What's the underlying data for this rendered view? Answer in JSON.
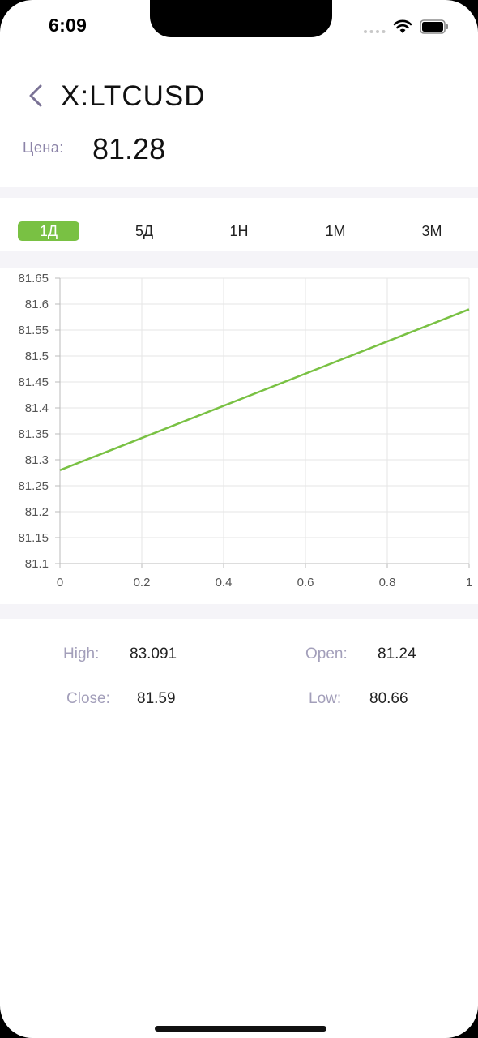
{
  "status_bar": {
    "time": "6:09"
  },
  "header": {
    "title": "X:LTCUSD"
  },
  "price": {
    "label": "Цена:",
    "value": "81.28"
  },
  "tabs": [
    {
      "label": "1Д",
      "active": true
    },
    {
      "label": "5Д",
      "active": false
    },
    {
      "label": "1Н",
      "active": false
    },
    {
      "label": "1М",
      "active": false
    },
    {
      "label": "3М",
      "active": false
    }
  ],
  "chart_data": {
    "type": "line",
    "x": [
      0,
      1
    ],
    "series": [
      {
        "values": [
          81.28,
          81.59
        ],
        "color": "#79c143"
      }
    ],
    "xlim": [
      0,
      1
    ],
    "ylim": [
      81.1,
      81.65
    ],
    "x_ticks": [
      "0",
      "0.2",
      "0.4",
      "0.6",
      "0.8",
      "1"
    ],
    "y_ticks": [
      "81.65",
      "81.6",
      "81.55",
      "81.5",
      "81.45",
      "81.4",
      "81.35",
      "81.3",
      "81.25",
      "81.2",
      "81.15",
      "81.1"
    ],
    "grid": true,
    "title": "",
    "xlabel": "",
    "ylabel": ""
  },
  "stats": {
    "high_label": "High:",
    "high_value": "83.091",
    "open_label": "Open:",
    "open_value": "81.24",
    "close_label": "Close:",
    "close_value": "81.59",
    "low_label": "Low:",
    "low_value": "80.66"
  },
  "colors": {
    "accent": "#79c143",
    "label": "#a39fba",
    "divider": "#f5f4f8"
  }
}
